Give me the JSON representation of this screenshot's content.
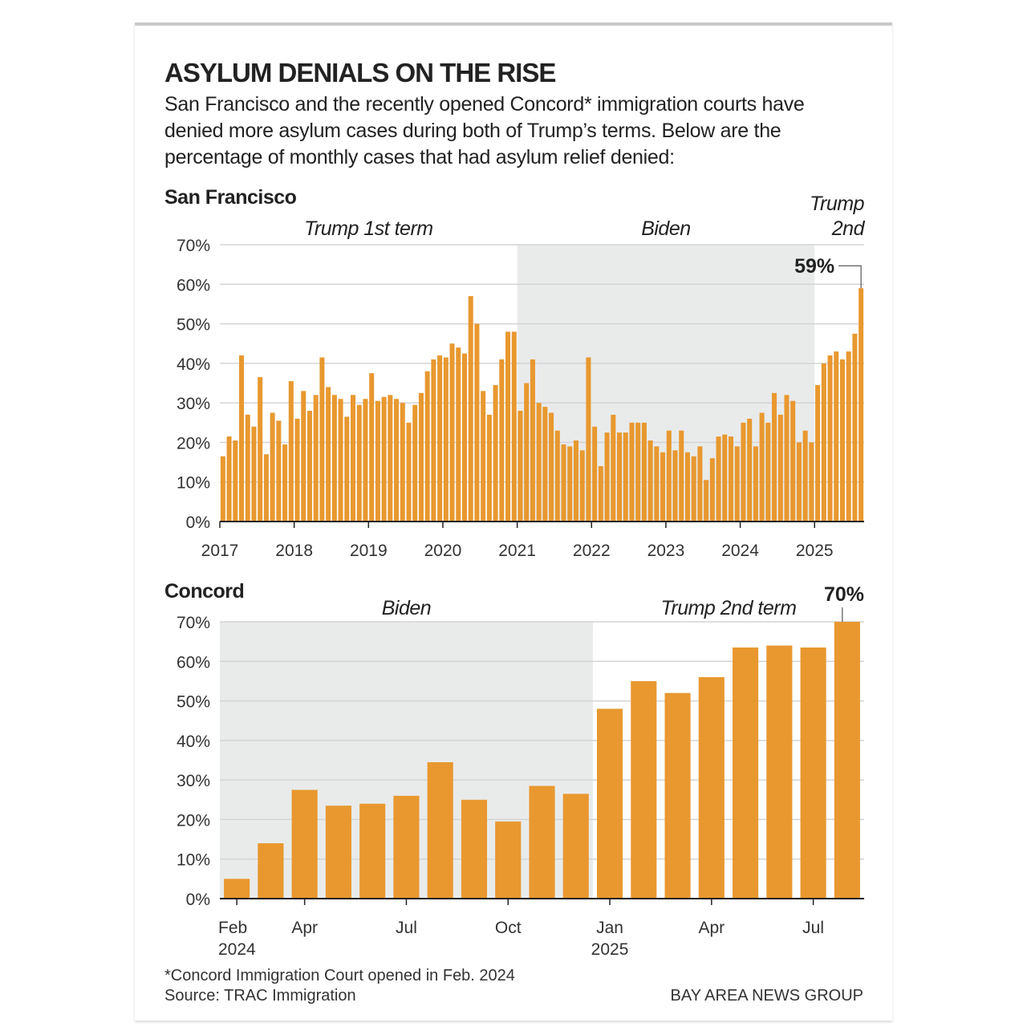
{
  "title": "ASYLUM DENIALS ON THE RISE",
  "subtitle": "San Francisco and the recently opened Concord* immigration courts have denied more asylum cases during both of Trump’s terms. Below are the percentage of monthly cases that had asylum relief denied:",
  "chart_data": [
    {
      "type": "bar",
      "title": "San Francisco",
      "color": "#e8982f",
      "categories": [
        "2017",
        null,
        null,
        null,
        null,
        null,
        null,
        null,
        null,
        null,
        null,
        null,
        "2018",
        null,
        null,
        null,
        null,
        null,
        null,
        null,
        null,
        null,
        null,
        null,
        "2019",
        null,
        null,
        null,
        null,
        null,
        null,
        null,
        null,
        null,
        null,
        null,
        "2020",
        null,
        null,
        null,
        null,
        null,
        null,
        null,
        null,
        null,
        null,
        null,
        "2021",
        null,
        null,
        null,
        null,
        null,
        null,
        null,
        null,
        null,
        null,
        null,
        "2022",
        null,
        null,
        null,
        null,
        null,
        null,
        null,
        null,
        null,
        null,
        null,
        "2023",
        null,
        null,
        null,
        null,
        null,
        null,
        null,
        null,
        null,
        null,
        null,
        "2024",
        null,
        null,
        null,
        null,
        null,
        null,
        null,
        null,
        null,
        null,
        null,
        "2025",
        null,
        null,
        null,
        null,
        null,
        null,
        null
      ],
      "values": [
        16.5,
        21.5,
        20.5,
        42,
        27,
        24,
        36.5,
        17,
        27.5,
        25.5,
        19.5,
        35.5,
        26,
        33,
        28,
        32,
        41.5,
        34,
        32,
        31,
        26.5,
        32,
        29.5,
        31,
        37.5,
        30.5,
        31.5,
        32,
        31,
        30,
        25,
        29.5,
        32.5,
        38,
        41,
        42,
        41.5,
        45,
        44,
        42.5,
        57,
        50,
        33,
        27,
        34.5,
        41,
        48,
        48,
        28,
        35,
        41,
        30,
        29,
        27.5,
        23,
        19.5,
        19,
        20.5,
        18,
        41.5,
        24,
        14,
        22.5,
        27,
        22.5,
        22.5,
        25,
        25,
        25,
        20.5,
        19,
        17.5,
        23,
        18,
        23,
        17.5,
        16.5,
        19,
        10.5,
        16,
        21.5,
        22,
        21.5,
        19,
        25,
        26,
        19,
        27.5,
        25,
        32.5,
        27,
        32,
        30.5,
        20,
        23,
        20,
        34.5,
        40,
        42,
        43,
        41,
        43,
        47.5,
        59
      ],
      "value_labels": [
        null,
        null,
        null,
        null,
        null,
        null,
        null,
        null,
        null,
        null,
        null,
        null,
        null,
        null,
        null,
        null,
        null,
        null,
        null,
        null,
        null,
        null,
        null,
        null,
        null,
        null,
        null,
        null,
        null,
        null,
        null,
        null,
        null,
        null,
        null,
        null,
        null,
        null,
        null,
        null,
        null,
        null,
        null,
        null,
        null,
        null,
        null,
        null,
        null,
        null,
        null,
        null,
        null,
        null,
        null,
        null,
        null,
        null,
        null,
        null,
        null,
        null,
        null,
        null,
        null,
        null,
        null,
        null,
        null,
        null,
        null,
        null,
        null,
        null,
        null,
        null,
        null,
        null,
        null,
        null,
        null,
        null,
        null,
        null,
        null,
        null,
        null,
        null,
        null,
        null,
        null,
        null,
        null,
        null,
        null,
        null,
        null,
        null,
        null,
        null,
        null,
        null,
        null,
        "59%"
      ],
      "periods": [
        {
          "label": "Trump 1st term",
          "from": 0,
          "to": 48,
          "shaded": false
        },
        {
          "label": "Biden",
          "from": 48,
          "to": 96,
          "shaded": true
        },
        {
          "label": "Trump 2nd",
          "from": 96,
          "to": 104,
          "shaded": false
        }
      ],
      "ylim": [
        0,
        70
      ],
      "yticks": [
        {
          "value": 0,
          "label": "0%"
        },
        {
          "value": 10,
          "label": "10%"
        },
        {
          "value": 20,
          "label": "20%"
        },
        {
          "value": 30,
          "label": "30%"
        },
        {
          "value": 40,
          "label": "40%"
        },
        {
          "value": 50,
          "label": "50%"
        },
        {
          "value": 60,
          "label": "60%"
        },
        {
          "value": 70,
          "label": "70%"
        }
      ],
      "grid": true
    },
    {
      "type": "bar",
      "title": "Concord",
      "color": "#e8982f",
      "categories": [
        "Feb 2024",
        null,
        "Apr",
        null,
        null,
        "Jul",
        null,
        null,
        "Oct",
        null,
        null,
        "Jan 2025",
        null,
        null,
        "Apr",
        null,
        null,
        "Jul",
        null
      ],
      "values": [
        5,
        14,
        27.5,
        23.5,
        24,
        26,
        34.5,
        25,
        19.5,
        28.5,
        26.5,
        48,
        55,
        52,
        56,
        63.5,
        64,
        63.5,
        70
      ],
      "value_labels": [
        null,
        null,
        null,
        null,
        null,
        null,
        null,
        null,
        null,
        null,
        null,
        null,
        null,
        null,
        null,
        null,
        null,
        null,
        "70%"
      ],
      "periods": [
        {
          "label": "Biden",
          "from": 0,
          "to": 11,
          "shaded": true
        },
        {
          "label": "Trump 2nd term",
          "from": 11,
          "to": 19,
          "shaded": false
        }
      ],
      "ylim": [
        0,
        70
      ],
      "yticks": [
        {
          "value": 0,
          "label": "0%"
        },
        {
          "value": 10,
          "label": "10%"
        },
        {
          "value": 20,
          "label": "20%"
        },
        {
          "value": 30,
          "label": "30%"
        },
        {
          "value": 40,
          "label": "40%"
        },
        {
          "value": 50,
          "label": "50%"
        },
        {
          "value": 60,
          "label": "60%"
        },
        {
          "value": 70,
          "label": "70%"
        }
      ],
      "grid": true
    }
  ],
  "notes": [
    "*Concord Immigration Court opened in Feb. 2024",
    "Source: TRAC Immigration"
  ],
  "credit": "BAY AREA NEWS GROUP"
}
